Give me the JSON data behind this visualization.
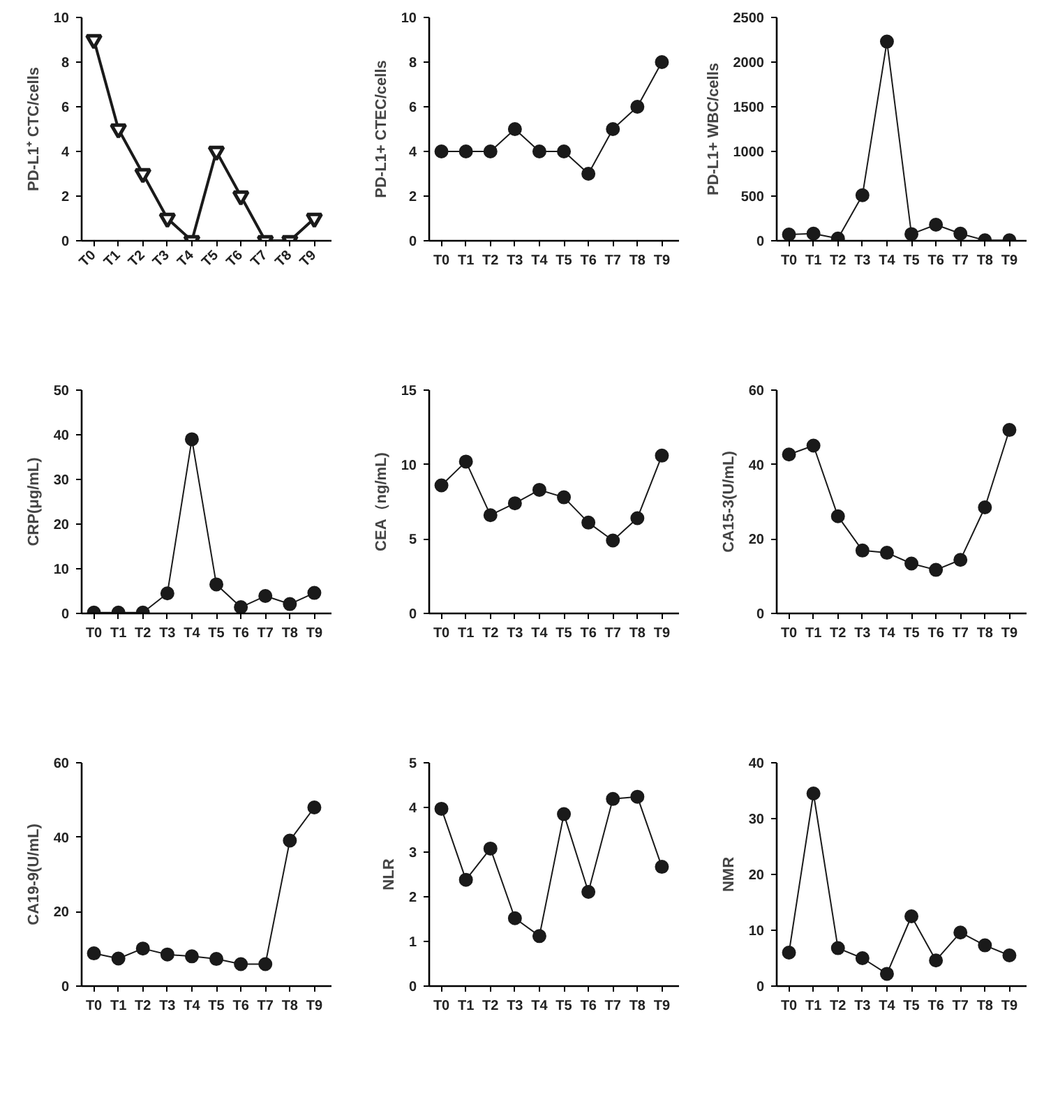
{
  "chart_data": [
    {
      "type": "line",
      "categories": [
        "T0",
        "T1",
        "T2",
        "T3",
        "T4",
        "T5",
        "T6",
        "T7",
        "T8",
        "T9"
      ],
      "ylabel": "PD-L1⁺ CTC/cells",
      "values": [
        9,
        5,
        3,
        1,
        0,
        4,
        2,
        0,
        0,
        1
      ],
      "color": "#1a1a1a",
      "marker": "triangle",
      "ylim": [
        0,
        10
      ],
      "yticks": [
        0,
        2,
        4,
        6,
        8,
        10
      ]
    },
    {
      "type": "line",
      "categories": [
        "T0",
        "T1",
        "T2",
        "T3",
        "T4",
        "T5",
        "T6",
        "T7",
        "T8",
        "T9"
      ],
      "ylabel": "PD-L1+ CTEC/cells",
      "values": [
        4,
        4,
        4,
        5,
        4,
        4,
        3,
        5,
        6,
        8
      ],
      "color": "#1a1a1a",
      "marker": "circle",
      "ylim": [
        0,
        10
      ],
      "yticks": [
        0,
        2,
        4,
        6,
        8,
        10
      ]
    },
    {
      "type": "line",
      "categories": [
        "T0",
        "T1",
        "T2",
        "T3",
        "T4",
        "T5",
        "T6",
        "T7",
        "T8",
        "T9"
      ],
      "ylabel": "PD-L1+ WBC/cells",
      "values": [
        70,
        80,
        25,
        510,
        2230,
        75,
        180,
        80,
        5,
        5
      ],
      "color": "#1a1a1a",
      "marker": "circle",
      "ylim": [
        0,
        2500
      ],
      "yticks": [
        0,
        500,
        1000,
        1500,
        2000,
        2500
      ]
    },
    {
      "type": "line",
      "categories": [
        "T0",
        "T1",
        "T2",
        "T3",
        "T4",
        "T5",
        "T6",
        "T7",
        "T8",
        "T9"
      ],
      "ylabel": "CRP(μg/mL)",
      "values": [
        0.2,
        0.2,
        0.2,
        4.5,
        39,
        6.5,
        1.4,
        3.9,
        2.1,
        4.6
      ],
      "color": "#1a1a1a",
      "marker": "circle",
      "ylim": [
        0,
        50
      ],
      "yticks": [
        0,
        10,
        20,
        30,
        40,
        50
      ]
    },
    {
      "type": "line",
      "categories": [
        "T0",
        "T1",
        "T2",
        "T3",
        "T4",
        "T5",
        "T6",
        "T7",
        "T8",
        "T9"
      ],
      "ylabel": "CEA（ng/mL)",
      "values": [
        8.6,
        10.2,
        6.6,
        7.4,
        8.3,
        7.8,
        6.1,
        4.9,
        6.4,
        10.6
      ],
      "color": "#1a1a1a",
      "marker": "circle",
      "ylim": [
        0,
        15
      ],
      "yticks": [
        0,
        5,
        10,
        15
      ]
    },
    {
      "type": "line",
      "categories": [
        "T0",
        "T1",
        "T2",
        "T3",
        "T4",
        "T5",
        "T6",
        "T7",
        "T8",
        "T9"
      ],
      "ylabel": "CA15-3(U/mL)",
      "values": [
        42.7,
        45.1,
        26.1,
        16.9,
        16.3,
        13.4,
        11.7,
        14.4,
        28.5,
        49.3
      ],
      "color": "#1a1a1a",
      "marker": "circle",
      "ylim": [
        0,
        60
      ],
      "yticks": [
        0,
        20,
        40,
        60
      ]
    },
    {
      "type": "line",
      "categories": [
        "T0",
        "T1",
        "T2",
        "T3",
        "T4",
        "T5",
        "T6",
        "T7",
        "T8",
        "T9"
      ],
      "ylabel": "CA19-9(U/mL)",
      "values": [
        8.8,
        7.4,
        10.1,
        8.5,
        8.0,
        7.3,
        5.9,
        5.9,
        39.1,
        48.0
      ],
      "color": "#1a1a1a",
      "marker": "circle",
      "ylim": [
        0,
        60
      ],
      "yticks": [
        0,
        20,
        40,
        60
      ]
    },
    {
      "type": "line",
      "categories": [
        "T0",
        "T1",
        "T2",
        "T3",
        "T4",
        "T5",
        "T6",
        "T7",
        "T8",
        "T9"
      ],
      "ylabel": "NLR",
      "values": [
        3.97,
        2.38,
        3.08,
        1.52,
        1.12,
        3.85,
        2.11,
        4.19,
        4.24,
        2.67
      ],
      "color": "#1a1a1a",
      "marker": "circle",
      "ylim": [
        0,
        5
      ],
      "yticks": [
        0,
        1,
        2,
        3,
        4,
        5
      ]
    },
    {
      "type": "line",
      "categories": [
        "T0",
        "T1",
        "T2",
        "T3",
        "T4",
        "T5",
        "T6",
        "T7",
        "T8",
        "T9"
      ],
      "ylabel": "NMR",
      "values": [
        6.0,
        34.5,
        6.8,
        5.0,
        2.2,
        12.5,
        4.6,
        9.6,
        7.3,
        5.5
      ],
      "color": "#1a1a1a",
      "marker": "circle",
      "ylim": [
        0,
        40
      ],
      "yticks": [
        0,
        10,
        20,
        30,
        40
      ]
    }
  ]
}
